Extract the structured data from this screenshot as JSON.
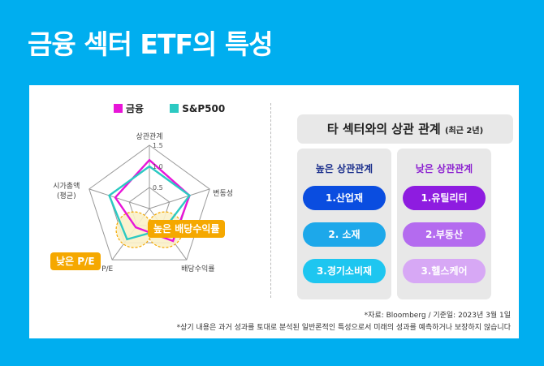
{
  "title": "금융 섹터 ETF의 특성",
  "legend": [
    {
      "label": "금융",
      "color": "#E815D8"
    },
    {
      "label": "S&P500",
      "color": "#2CC9C2"
    }
  ],
  "chart_data": {
    "type": "radar",
    "axes": [
      "상관관계",
      "변동성",
      "배당수익률",
      "P/E",
      "시가총액 (평균)"
    ],
    "axis_labels": [
      "상관관계",
      "변동성",
      "배당수익률",
      "P/E",
      "시가총액",
      "(평균)"
    ],
    "ticks": [
      "1.5",
      "1.0",
      "0.5"
    ],
    "range": [
      0,
      1.5
    ],
    "series": [
      {
        "name": "금융",
        "values": [
          1.15,
          1.0,
          0.95,
          0.55,
          0.85
        ]
      },
      {
        "name": "S&P500",
        "values": [
          1.0,
          1.0,
          0.6,
          0.9,
          1.0
        ]
      }
    ]
  },
  "callouts": {
    "high_dividend": "높은 배당수익률",
    "low_pe": "낮은 P/E"
  },
  "correlation": {
    "title": "타 섹터와의 상관 관계",
    "subtitle": "(최근 2년)",
    "high": {
      "label": "높은 상관관계",
      "items": [
        "1.산업재",
        "2. 소재",
        "3.경기소비재"
      ]
    },
    "low": {
      "label": "낮은 상관관계",
      "items": [
        "1.유틸리티",
        "2.부동산",
        "3.헬스케어"
      ]
    },
    "colors": {
      "high_head": "#1A2E8C",
      "low_head": "#8B1FD0",
      "high": [
        "#0A4DE0",
        "#1DA8EA",
        "#1EC6F0"
      ],
      "low": [
        "#8E1CE0",
        "#B46BEF",
        "#D7A8F5"
      ]
    }
  },
  "footnotes": {
    "source": "*자료: Bloomberg / 기준일: 2023년 3월 1일",
    "disclaimer": "*상기 내용은 과거 성과를 토대로 분석된 일반론적인 특성으로서 미래의 성과를 예측하거나 보장하지 않습니다"
  }
}
